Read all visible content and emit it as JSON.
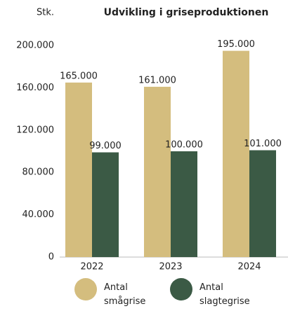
{
  "chart_data": {
    "type": "bar",
    "title": "Udvikling i griseproduktionen",
    "y_label": "Stk.",
    "categories": [
      "2022",
      "2023",
      "2024"
    ],
    "series": [
      {
        "name": "Antal smågrise",
        "color": "#d4bd7e",
        "values": [
          165000,
          161000,
          195000
        ],
        "value_labels": [
          "165.000",
          "161.000",
          "195.000"
        ]
      },
      {
        "name": "Antal slagtegrise",
        "color": "#3b5a45",
        "values": [
          99000,
          100000,
          101000
        ],
        "value_labels": [
          "99.000",
          "100.000",
          "101.000"
        ]
      }
    ],
    "ylim": [
      0,
      200000
    ],
    "yticks": [
      0,
      {
        "value": 40000,
        "label": "40.000"
      },
      {
        "value": 80000,
        "label": "80.000"
      },
      {
        "value": 120000,
        "label": "120.000"
      },
      {
        "value": 160000,
        "label": "160.000"
      },
      {
        "value": 200000,
        "label": "200.000"
      }
    ],
    "legend": "bottom"
  }
}
